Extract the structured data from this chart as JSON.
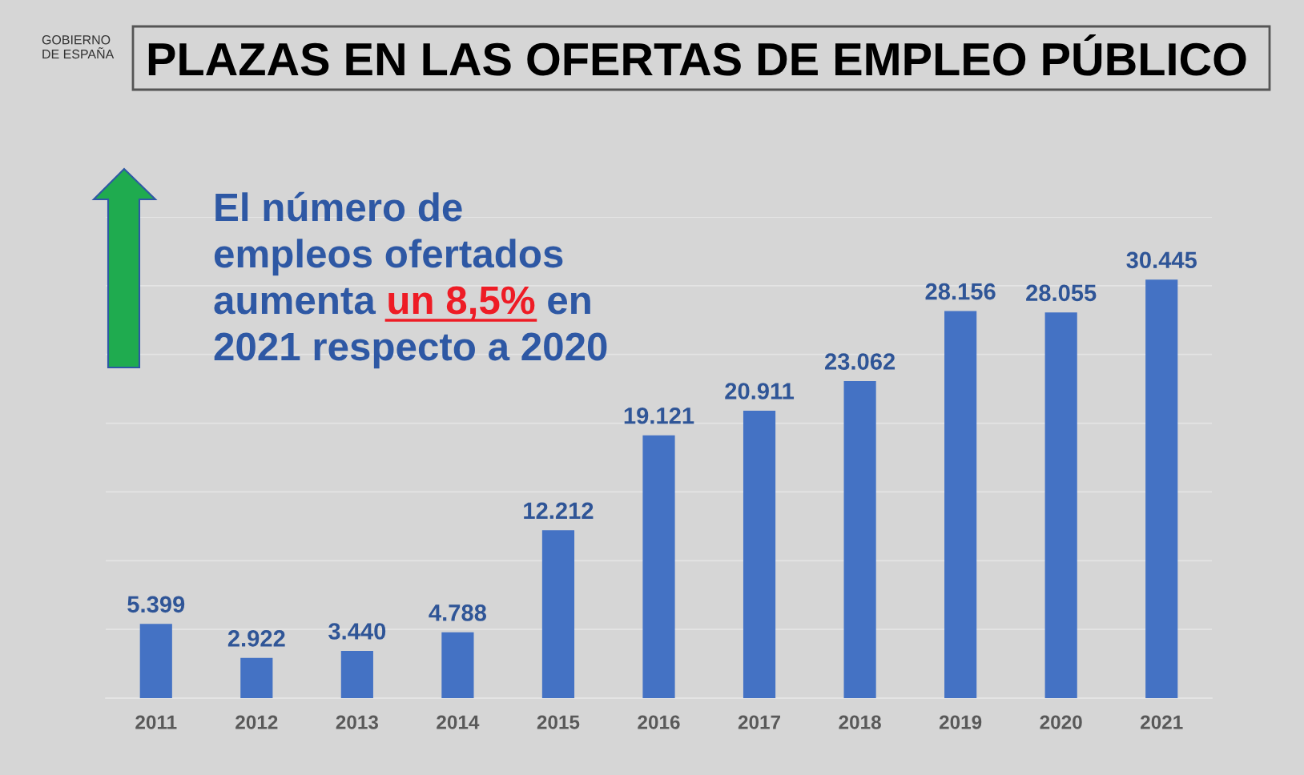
{
  "chart_data": {
    "type": "bar",
    "title": "PLAZAS EN LAS OFERTAS DE EMPLEO PÚBLICO",
    "annotations": [
      "GOBIERNO\nDE ESPAÑA",
      "El número de",
      "empleos ofertados",
      "aumenta",
      "un 8,5%",
      "en",
      "2021 respecto a 2020"
    ],
    "categories": [
      "2011",
      "2012",
      "2013",
      "2014",
      "2015",
      "2016",
      "2017",
      "2018",
      "2019",
      "2020",
      "2021"
    ],
    "values": [
      5399,
      2922,
      3440,
      4788,
      12212,
      19121,
      20911,
      23062,
      28156,
      28055,
      30445
    ],
    "value_labels": [
      "5.399",
      "2.922",
      "3.440",
      "4.788",
      "12.212",
      "19.121",
      "20.911",
      "23.062",
      "28.156",
      "28.055",
      "30.445"
    ],
    "color": "#4472c4",
    "ylim": [
      0,
      35000
    ],
    "yticks": [
      {
        "value": 0,
        "label": null
      },
      {
        "value": 5000,
        "label": null
      },
      {
        "value": 10000,
        "label": null
      },
      {
        "value": 15000,
        "label": null
      },
      {
        "value": 20000,
        "label": null
      },
      {
        "value": 25000,
        "label": null
      },
      {
        "value": 30000,
        "label": null
      },
      {
        "value": 35000,
        "label": null
      }
    ],
    "tick_labels": "x",
    "grid": "y"
  }
}
